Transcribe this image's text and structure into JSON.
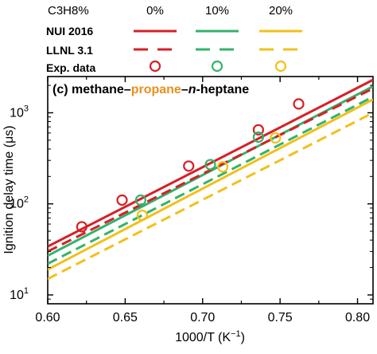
{
  "chart_data": {
    "type": "line",
    "panel_title": {
      "prefix": "(c) ",
      "parts": [
        {
          "text": "methane",
          "color": "#000000",
          "italic": false
        },
        {
          "text": "–",
          "color": "#000000",
          "italic": false
        },
        {
          "text": "propane",
          "color": "#e8901e",
          "italic": false
        },
        {
          "text": "–",
          "color": "#000000",
          "italic": false
        },
        {
          "text": "n",
          "color": "#000000",
          "italic": true
        },
        {
          "text": "-heptane",
          "color": "#000000",
          "italic": false
        }
      ]
    },
    "xlabel": "1000/T (K",
    "xlabel_sup": "−1",
    "xlabel_suffix": ")",
    "ylabel": "Ignition delay time (μs)",
    "xlim": [
      0.6,
      0.81
    ],
    "ylim": [
      8,
      2500
    ],
    "yscale": "log",
    "xticks": [
      0.6,
      0.65,
      0.7,
      0.75,
      0.8
    ],
    "xtick_labels": [
      "0.60",
      "0.65",
      "0.70",
      "0.75",
      "0.80"
    ],
    "yticks": [
      10,
      100,
      1000
    ],
    "ytick_labels": [
      {
        "base": "10",
        "exp": "1"
      },
      {
        "base": "10",
        "exp": "2"
      },
      {
        "base": "10",
        "exp": "3"
      }
    ],
    "legend": {
      "header_label": "C3H8%",
      "columns": [
        "0%",
        "10%",
        "20%"
      ],
      "rows": [
        "NUI 2016",
        "LLNL 3.1",
        "Exp. data"
      ],
      "colors": [
        "#d62027",
        "#33b36b",
        "#f2c01a"
      ]
    },
    "series": [
      {
        "model": "NUI 2016",
        "propane": "0%",
        "color": "#d62027",
        "style": "solid",
        "x": [
          0.6,
          0.81
        ],
        "y": [
          34,
          2300
        ]
      },
      {
        "model": "NUI 2016",
        "propane": "10%",
        "color": "#33b36b",
        "style": "solid",
        "x": [
          0.6,
          0.81
        ],
        "y": [
          27,
          1950
        ]
      },
      {
        "model": "NUI 2016",
        "propane": "20%",
        "color": "#f2c01a",
        "style": "solid",
        "x": [
          0.6,
          0.81
        ],
        "y": [
          19,
          1400
        ]
      },
      {
        "model": "LLNL 3.1",
        "propane": "0%",
        "color": "#d62027",
        "style": "dashed",
        "x": [
          0.6,
          0.81
        ],
        "y": [
          30,
          1850
        ]
      },
      {
        "model": "LLNL 3.1",
        "propane": "10%",
        "color": "#33b36b",
        "style": "dashed",
        "x": [
          0.6,
          0.81
        ],
        "y": [
          22,
          1500
        ]
      },
      {
        "model": "LLNL 3.1",
        "propane": "20%",
        "color": "#f2c01a",
        "style": "dashed",
        "x": [
          0.6,
          0.81
        ],
        "y": [
          15,
          1000
        ]
      }
    ],
    "experiments": [
      {
        "propane": "0%",
        "color": "#d62027",
        "points": [
          [
            0.622,
            56
          ],
          [
            0.648,
            110
          ],
          [
            0.691,
            260
          ],
          [
            0.736,
            650
          ],
          [
            0.762,
            1250
          ]
        ]
      },
      {
        "propane": "10%",
        "color": "#33b36b",
        "points": [
          [
            0.66,
            110
          ],
          [
            0.705,
            270
          ],
          [
            0.736,
            540
          ]
        ]
      },
      {
        "propane": "20%",
        "color": "#f2c01a",
        "points": [
          [
            0.661,
            75
          ],
          [
            0.713,
            255
          ],
          [
            0.747,
            530
          ]
        ]
      }
    ]
  }
}
